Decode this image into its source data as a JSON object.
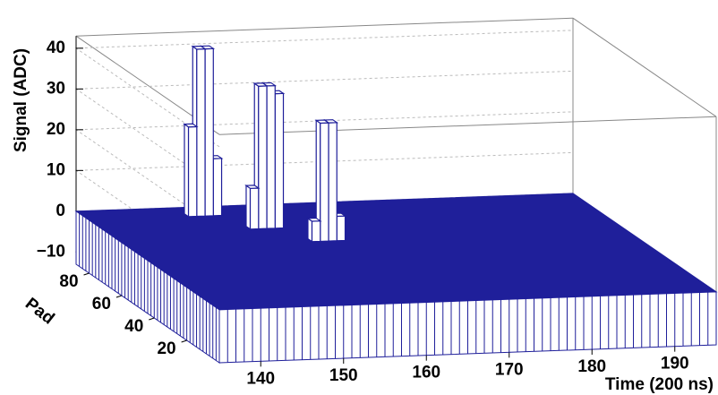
{
  "chart_data": {
    "type": "lego",
    "xlabel": "Time (200 ns)",
    "ylabel": "Pad",
    "zlabel": "Signal (ADC)",
    "xlim": [
      135,
      195
    ],
    "ylim": [
      0,
      88
    ],
    "zlim": [
      -13,
      43
    ],
    "xticks": [
      140,
      150,
      160,
      170,
      180,
      190
    ],
    "yticks": [
      20,
      40,
      60,
      80
    ],
    "zticks": [
      {
        "value": -10,
        "label": "−10"
      },
      0,
      10,
      20,
      30,
      40
    ],
    "baseline": 0,
    "color": "#1f1f9a",
    "cells": {
      "time": [
        147,
        148,
        149,
        150,
        152,
        153,
        154,
        155,
        157,
        158,
        159,
        160
      ],
      "pad": [
        80,
        80,
        80,
        80,
        67.5,
        67.5,
        67.5,
        67.5,
        55,
        55,
        55,
        55
      ],
      "values": [
        22,
        41,
        41,
        14,
        10,
        35,
        35,
        33,
        5,
        29,
        29,
        6
      ]
    }
  }
}
